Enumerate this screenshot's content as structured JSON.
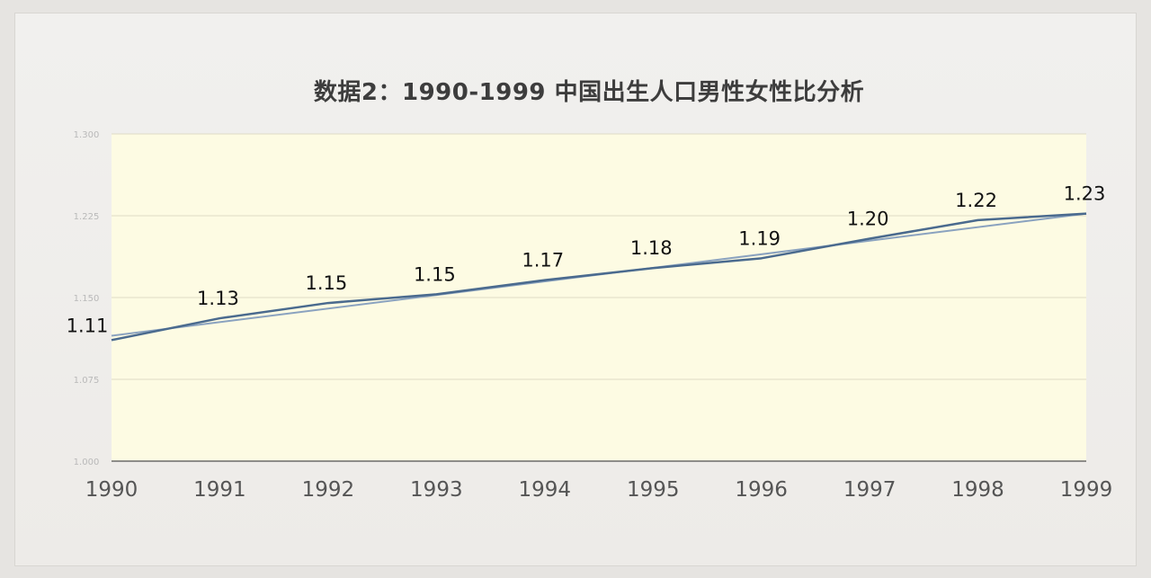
{
  "chart_data": {
    "type": "line",
    "title": "数据2：1990-1999 中国出生人口男性女性比分析",
    "categories": [
      "1990",
      "1991",
      "1992",
      "1993",
      "1994",
      "1995",
      "1996",
      "1997",
      "1998",
      "1999"
    ],
    "series": [
      {
        "values": [
          1.111,
          1.131,
          1.145,
          1.153,
          1.166,
          1.177,
          1.186,
          1.204,
          1.221,
          1.227
        ],
        "labels": [
          "1.11",
          "1.13",
          "1.15",
          "1.15",
          "1.17",
          "1.18",
          "1.19",
          "1.20",
          "1.22",
          "1.23"
        ],
        "color": "#4a6a8e"
      }
    ],
    "trendline": {
      "start": 1.115,
      "end": 1.227,
      "color": "#8aa2bf"
    },
    "ylim": [
      1.0,
      1.3
    ],
    "yticks": [
      "1.000",
      "1.075",
      "1.150",
      "1.225",
      "1.300"
    ],
    "grid": true,
    "plot_background": "#fdfbe3"
  }
}
